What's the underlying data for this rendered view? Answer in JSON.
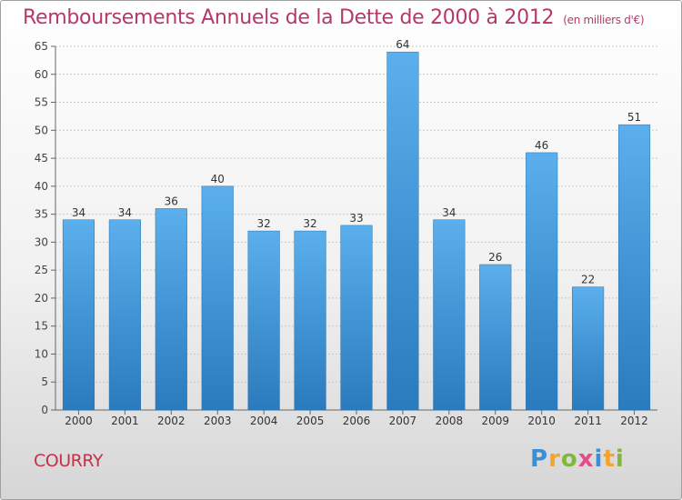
{
  "header": {
    "title": "Remboursements Annuels de la Dette de 2000 à 2012",
    "unit_note": "(en milliers d'€)"
  },
  "footer": {
    "commune": "COURRY",
    "brand": "Proxiti"
  },
  "colors": {
    "bar_top": "#5aafec",
    "bar_bottom": "#2a7bbd",
    "title": "#b5386a",
    "commune": "#c2334a"
  },
  "chart_data": {
    "type": "bar",
    "title": "Remboursements Annuels de la Dette de 2000 à 2012",
    "subtitle": "(en milliers d'€)",
    "categories": [
      "2000",
      "2001",
      "2002",
      "2003",
      "2004",
      "2005",
      "2006",
      "2007",
      "2008",
      "2009",
      "2010",
      "2011",
      "2012"
    ],
    "values": [
      34,
      34,
      36,
      40,
      32,
      32,
      33,
      64,
      34,
      26,
      46,
      22,
      51
    ],
    "ylim": [
      0,
      65
    ],
    "yticks": [
      0,
      5,
      10,
      15,
      20,
      25,
      30,
      35,
      40,
      45,
      50,
      55,
      60,
      65
    ],
    "grid": true,
    "legend": "none",
    "data_labels": true
  }
}
